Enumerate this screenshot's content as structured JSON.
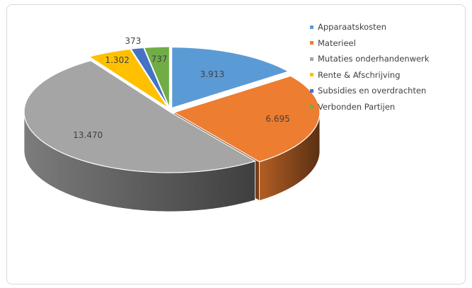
{
  "chart_data": {
    "type": "pie",
    "categories": [
      "Apparaatskosten",
      "Materieel",
      "Mutaties onderhandenwerk",
      "Rente & Afschrijving",
      "Subsidies en overdrachten",
      "Verbonden Partijen"
    ],
    "values": [
      3913,
      6695,
      13470,
      1302,
      373,
      737
    ],
    "labels": [
      "3.913",
      "6.695",
      "13.470",
      "1.302",
      "373",
      "737"
    ],
    "colors": [
      "#5b9bd5",
      "#ed7d31",
      "#a5a5a5",
      "#ffc000",
      "#4472c4",
      "#70ad47"
    ],
    "legend_position": "right",
    "style": "3d-exploded"
  }
}
